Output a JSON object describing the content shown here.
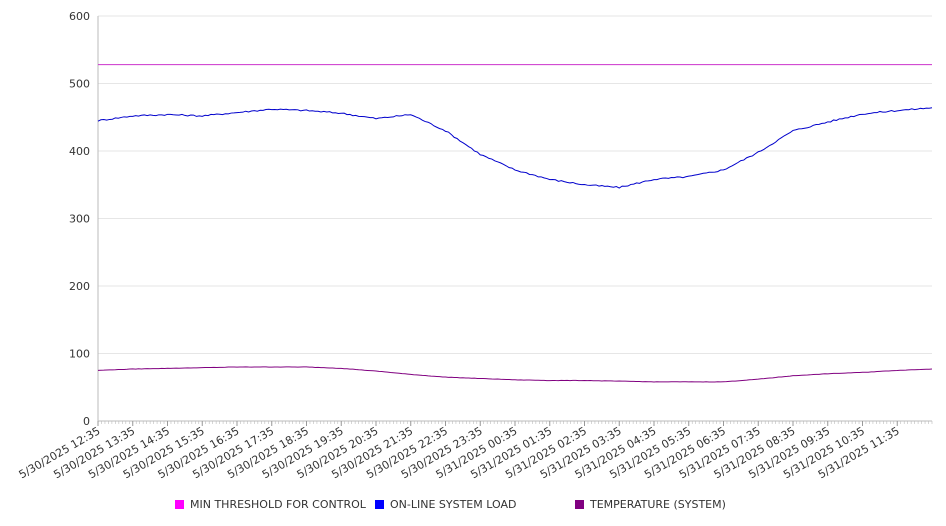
{
  "chart_data": {
    "type": "line",
    "title": "",
    "xlabel": "",
    "ylabel": "",
    "ylim": [
      0,
      600
    ],
    "yticks": [
      0,
      100,
      200,
      300,
      400,
      500,
      600
    ],
    "grid": true,
    "legend_position": "bottom",
    "x_tick_labels": [
      "5/30/2025 12:35",
      "5/30/2025 13:35",
      "5/30/2025 14:35",
      "5/30/2025 15:35",
      "5/30/2025 16:35",
      "5/30/2025 17:35",
      "5/30/2025 18:35",
      "5/30/2025 19:35",
      "5/30/2025 20:35",
      "5/30/2025 21:35",
      "5/30/2025 22:35",
      "5/30/2025 23:35",
      "5/31/2025 00:35",
      "5/31/2025 01:35",
      "5/31/2025 02:35",
      "5/31/2025 03:35",
      "5/31/2025 04:35",
      "5/31/2025 05:35",
      "5/31/2025 06:35",
      "5/31/2025 07:35",
      "5/31/2025 08:35",
      "5/31/2025 09:35",
      "5/31/2025 10:35",
      "5/31/2025 11:35"
    ],
    "x": [
      "5/30/2025 12:35",
      "5/30/2025 13:35",
      "5/30/2025 14:35",
      "5/30/2025 15:35",
      "5/30/2025 16:35",
      "5/30/2025 17:35",
      "5/30/2025 18:35",
      "5/30/2025 19:35",
      "5/30/2025 20:35",
      "5/30/2025 21:35",
      "5/30/2025 22:35",
      "5/30/2025 23:35",
      "5/31/2025 00:35",
      "5/31/2025 01:35",
      "5/31/2025 02:35",
      "5/31/2025 03:35",
      "5/31/2025 04:35",
      "5/31/2025 05:35",
      "5/31/2025 06:35",
      "5/31/2025 07:35",
      "5/31/2025 08:35",
      "5/31/2025 09:35",
      "5/31/2025 10:35",
      "5/31/2025 11:35",
      "5/31/2025 12:35"
    ],
    "series": [
      {
        "name": "MIN THRESHOLD FOR CONTROL",
        "color": "#cc33cc",
        "values": [
          528,
          528,
          528,
          528,
          528,
          528,
          528,
          528,
          528,
          528,
          528,
          528,
          528,
          528,
          528,
          528,
          528,
          528,
          528,
          528,
          528,
          528,
          528,
          528,
          528
        ]
      },
      {
        "name": "ON-LINE SYSTEM LOAD",
        "color": "#0000cc",
        "values": [
          445,
          452,
          454,
          452,
          457,
          462,
          460,
          456,
          448,
          454,
          430,
          395,
          372,
          358,
          350,
          346,
          358,
          362,
          372,
          398,
          430,
          443,
          455,
          460,
          464
        ]
      },
      {
        "name": "TEMPERATURE (SYSTEM)",
        "color": "#800080",
        "values": [
          75,
          77,
          78,
          79,
          80,
          80,
          80,
          78,
          74,
          69,
          65,
          63,
          61,
          60,
          60,
          59,
          58,
          58,
          58,
          62,
          67,
          70,
          72,
          75,
          77
        ]
      }
    ]
  },
  "legend": {
    "items": [
      {
        "label": "MIN THRESHOLD FOR CONTROL",
        "color": "#ff00ff"
      },
      {
        "label": "ON-LINE SYSTEM LOAD",
        "color": "#0000ff"
      },
      {
        "label": "TEMPERATURE (SYSTEM)",
        "color": "#800080"
      }
    ]
  }
}
